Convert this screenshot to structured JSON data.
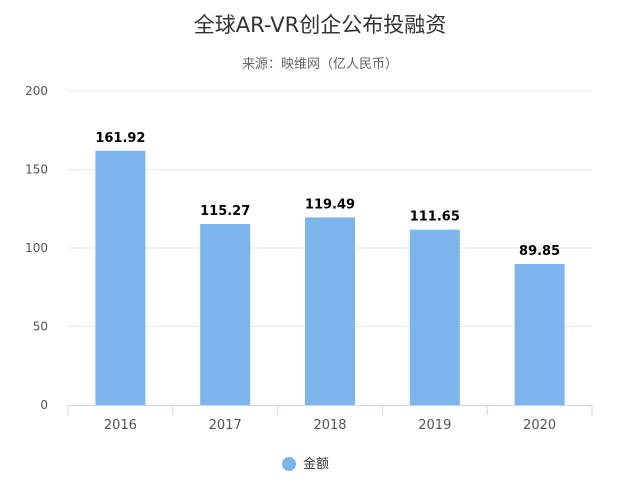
{
  "chart_data": {
    "type": "bar",
    "title": "全球AR-VR创企公布投融资",
    "subtitle": "来源：映维网（亿人民币）",
    "categories": [
      "2016",
      "2017",
      "2018",
      "2019",
      "2020"
    ],
    "series": [
      {
        "name": "金额",
        "values": [
          161.92,
          115.27,
          119.49,
          111.65,
          89.85
        ]
      }
    ],
    "data_labels": [
      "161.92",
      "115.27",
      "119.49",
      "111.65",
      "89.85"
    ],
    "ylim": [
      0,
      200
    ],
    "yticks": [
      0,
      50,
      100,
      150,
      200
    ],
    "grid": true,
    "legend": "bottom-center",
    "colors": {
      "bar": "#7cb5ec",
      "grid": "#e6e6e6",
      "axis": "#ccd6eb"
    }
  }
}
